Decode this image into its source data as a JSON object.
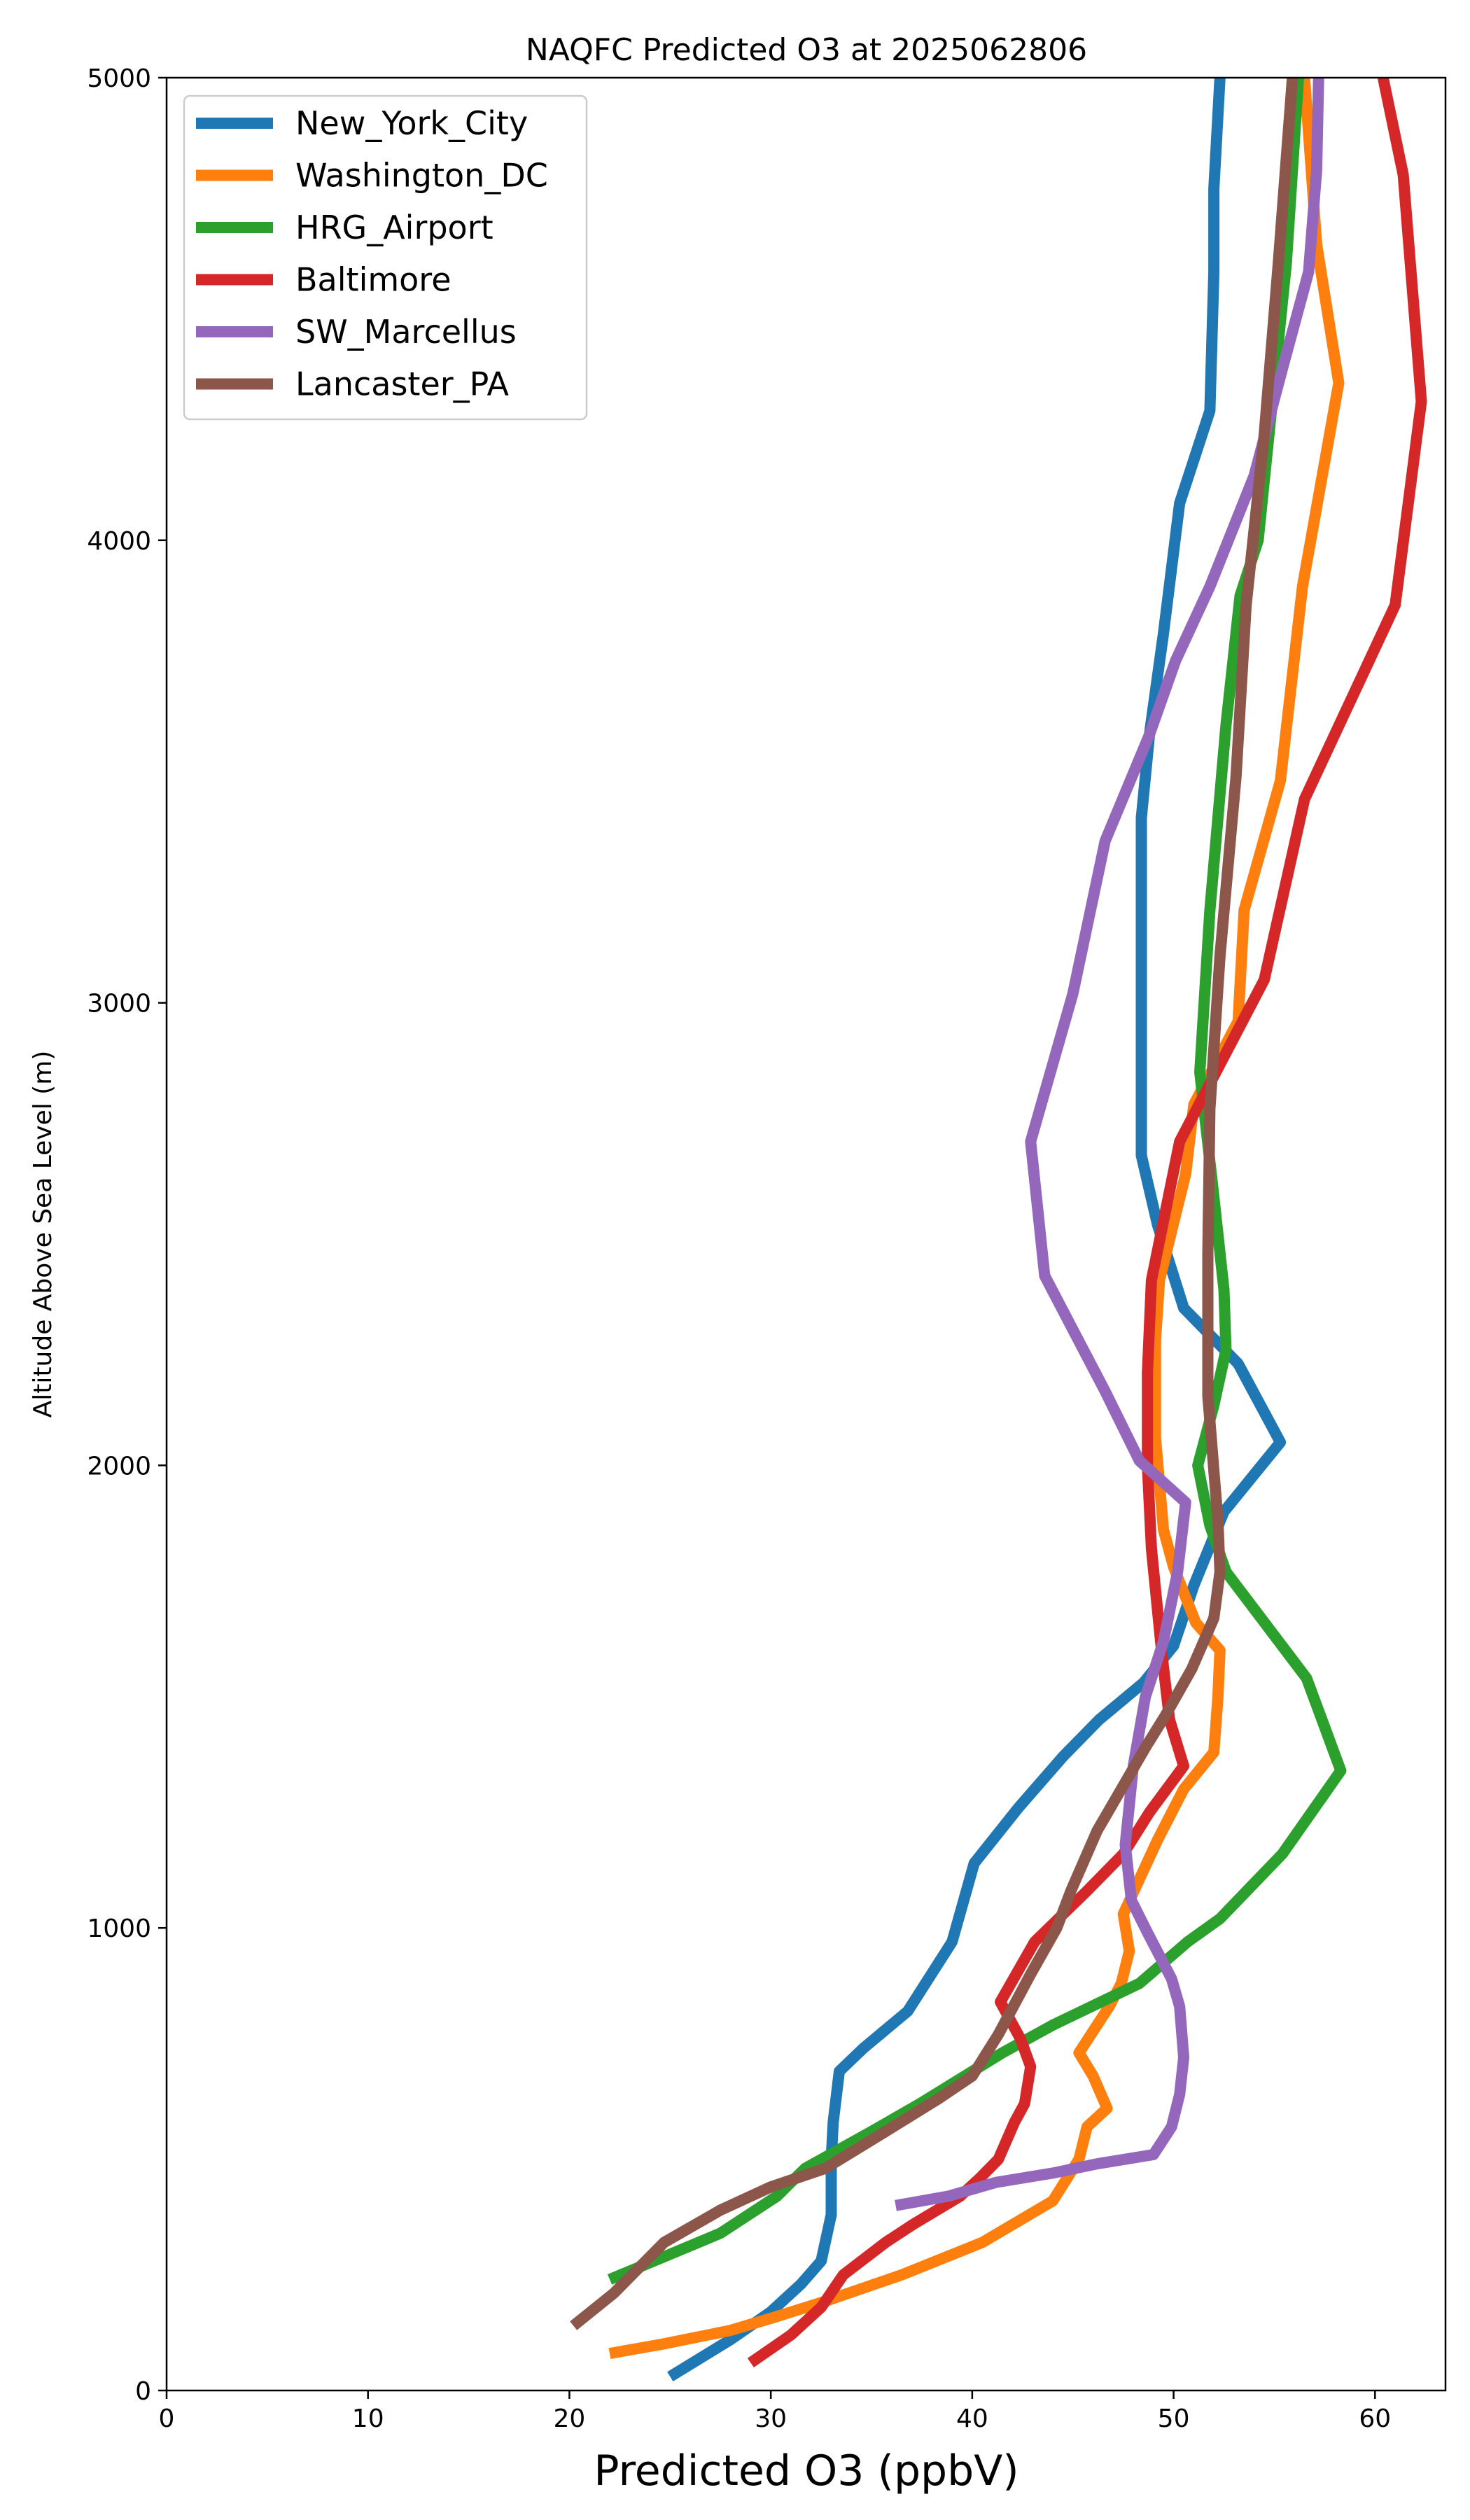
{
  "chart_data": {
    "type": "line",
    "title": "NAQFC Predicted O3 at 2025062806",
    "xlabel": "Predicted O3 (ppbV)",
    "ylabel": "Altitude Above Sea Level (m)",
    "xlim": [
      0,
      63.5
    ],
    "ylim": [
      0,
      5000
    ],
    "xticks": [
      0,
      10,
      20,
      30,
      40,
      50,
      60
    ],
    "yticks": [
      0,
      1000,
      2000,
      3000,
      4000,
      5000
    ],
    "legend": "top-left",
    "grid": false,
    "series": [
      {
        "name": "New_York_City",
        "color": "#1f77b4",
        "points": [
          [
            25,
            30
          ],
          [
            28,
            110
          ],
          [
            30,
            170
          ],
          [
            31.5,
            230
          ],
          [
            32.5,
            280
          ],
          [
            33,
            380
          ],
          [
            33,
            500
          ],
          [
            33.1,
            580
          ],
          [
            33.4,
            690
          ],
          [
            34.6,
            740
          ],
          [
            36.8,
            820
          ],
          [
            39,
            970
          ],
          [
            40.1,
            1140
          ],
          [
            42.3,
            1260
          ],
          [
            44.5,
            1370
          ],
          [
            46.3,
            1450
          ],
          [
            48.5,
            1530
          ],
          [
            50,
            1610
          ],
          [
            51,
            1740
          ],
          [
            52.5,
            1900
          ],
          [
            55.3,
            2050
          ],
          [
            53.2,
            2220
          ],
          [
            50.5,
            2340
          ],
          [
            49.2,
            2520
          ],
          [
            48.4,
            2670
          ],
          [
            48.4,
            3000
          ],
          [
            48.4,
            3400
          ],
          [
            48.8,
            3580
          ],
          [
            49.5,
            3800
          ],
          [
            50.3,
            4080
          ],
          [
            51.8,
            4280
          ],
          [
            52,
            4580
          ],
          [
            52,
            4760
          ],
          [
            52.3,
            5000
          ]
        ]
      },
      {
        "name": "Washington_DC",
        "color": "#ff7f0e",
        "points": [
          [
            22,
            80
          ],
          [
            24.6,
            100
          ],
          [
            28,
            130
          ],
          [
            30.3,
            160
          ],
          [
            32.5,
            190
          ],
          [
            36.5,
            250
          ],
          [
            40.5,
            320
          ],
          [
            44,
            410
          ],
          [
            45.3,
            500
          ],
          [
            45.7,
            570
          ],
          [
            46.7,
            610
          ],
          [
            46,
            680
          ],
          [
            45.3,
            730
          ],
          [
            46.8,
            830
          ],
          [
            47.4,
            880
          ],
          [
            47.8,
            950
          ],
          [
            47.5,
            1030
          ],
          [
            49.2,
            1190
          ],
          [
            50.5,
            1300
          ],
          [
            52,
            1380
          ],
          [
            52.2,
            1500
          ],
          [
            52.3,
            1600
          ],
          [
            51.1,
            1660
          ],
          [
            50,
            1780
          ],
          [
            49.5,
            1860
          ],
          [
            49.1,
            2060
          ],
          [
            49.1,
            2270
          ],
          [
            49.3,
            2400
          ],
          [
            50.6,
            2630
          ],
          [
            51,
            2780
          ],
          [
            53.2,
            2960
          ],
          [
            53.5,
            3200
          ],
          [
            55.3,
            3480
          ],
          [
            56.4,
            3900
          ],
          [
            58.2,
            4340
          ],
          [
            57.1,
            4640
          ],
          [
            56.5,
            5000
          ]
        ]
      },
      {
        "name": "HRG_Airport",
        "color": "#2ca02c",
        "points": [
          [
            22,
            240
          ],
          [
            27.5,
            340
          ],
          [
            30.3,
            420
          ],
          [
            31.7,
            480
          ],
          [
            35,
            560
          ],
          [
            37.4,
            620
          ],
          [
            41.5,
            730
          ],
          [
            44,
            790
          ],
          [
            48.3,
            880
          ],
          [
            50.7,
            970
          ],
          [
            52.3,
            1020
          ],
          [
            55.4,
            1160
          ],
          [
            58.3,
            1340
          ],
          [
            56.6,
            1540
          ],
          [
            52.6,
            1770
          ],
          [
            51.8,
            1870
          ],
          [
            51.2,
            2000
          ],
          [
            52,
            2130
          ],
          [
            52.6,
            2250
          ],
          [
            52.5,
            2380
          ],
          [
            52,
            2580
          ],
          [
            51.3,
            2850
          ],
          [
            51.8,
            3200
          ],
          [
            52.6,
            3600
          ],
          [
            53.3,
            3880
          ],
          [
            54.2,
            4000
          ],
          [
            54.9,
            4300
          ],
          [
            55.6,
            4600
          ],
          [
            56.2,
            5000
          ]
        ]
      },
      {
        "name": "Baltimore",
        "color": "#d62728",
        "points": [
          [
            29,
            60
          ],
          [
            31,
            120
          ],
          [
            32.5,
            180
          ],
          [
            33.6,
            250
          ],
          [
            35.7,
            320
          ],
          [
            37.1,
            360
          ],
          [
            39.4,
            420
          ],
          [
            40.4,
            460
          ],
          [
            41.3,
            500
          ],
          [
            42.1,
            580
          ],
          [
            42.6,
            620
          ],
          [
            42.9,
            700
          ],
          [
            42.4,
            760
          ],
          [
            41.4,
            840
          ],
          [
            43.1,
            970
          ],
          [
            45.7,
            1080
          ],
          [
            47.5,
            1160
          ],
          [
            48.8,
            1250
          ],
          [
            50.5,
            1350
          ],
          [
            49.8,
            1450
          ],
          [
            49.4,
            1600
          ],
          [
            48.9,
            1820
          ],
          [
            48.7,
            2000
          ],
          [
            48.7,
            2200
          ],
          [
            48.9,
            2400
          ],
          [
            50.3,
            2700
          ],
          [
            54.5,
            3050
          ],
          [
            56.5,
            3440
          ],
          [
            61,
            3860
          ],
          [
            62.3,
            4300
          ],
          [
            61.4,
            4790
          ],
          [
            60.4,
            5000
          ]
        ]
      },
      {
        "name": "SW_Marcellus",
        "color": "#9467bd",
        "points": [
          [
            36.2,
            400
          ],
          [
            38.8,
            420
          ],
          [
            41.2,
            450
          ],
          [
            44,
            470
          ],
          [
            46.2,
            490
          ],
          [
            49,
            510
          ],
          [
            49.9,
            570
          ],
          [
            50.3,
            640
          ],
          [
            50.5,
            720
          ],
          [
            50.3,
            830
          ],
          [
            49.9,
            890
          ],
          [
            48.7,
            990
          ],
          [
            47.9,
            1060
          ],
          [
            47.6,
            1180
          ],
          [
            48,
            1350
          ],
          [
            48.6,
            1500
          ],
          [
            49.5,
            1620
          ],
          [
            50.2,
            1770
          ],
          [
            50.6,
            1920
          ],
          [
            48.3,
            2010
          ],
          [
            46.6,
            2160
          ],
          [
            43.6,
            2410
          ],
          [
            42.9,
            2700
          ],
          [
            45,
            3020
          ],
          [
            46.6,
            3350
          ],
          [
            48.8,
            3580
          ],
          [
            50.1,
            3740
          ],
          [
            51.8,
            3900
          ],
          [
            54,
            4140
          ],
          [
            55.4,
            4370
          ],
          [
            56.7,
            4580
          ],
          [
            57.1,
            4800
          ],
          [
            57.2,
            5000
          ]
        ]
      },
      {
        "name": "Lancaster_PA",
        "color": "#8c564b",
        "points": [
          [
            20.2,
            140
          ],
          [
            22.2,
            210
          ],
          [
            24.7,
            320
          ],
          [
            27.5,
            390
          ],
          [
            30,
            440
          ],
          [
            32.7,
            480
          ],
          [
            35.7,
            560
          ],
          [
            38.3,
            630
          ],
          [
            40,
            680
          ],
          [
            41.3,
            770
          ],
          [
            42.9,
            900
          ],
          [
            44.2,
            1000
          ],
          [
            44.9,
            1080
          ],
          [
            46.2,
            1210
          ],
          [
            47.4,
            1300
          ],
          [
            48.6,
            1390
          ],
          [
            49.6,
            1460
          ],
          [
            50.9,
            1560
          ],
          [
            52,
            1670
          ],
          [
            52.3,
            1770
          ],
          [
            52.2,
            1880
          ],
          [
            51.7,
            2150
          ],
          [
            51.7,
            2460
          ],
          [
            51.8,
            2770
          ],
          [
            52.3,
            3100
          ],
          [
            53.1,
            3490
          ],
          [
            53.6,
            3860
          ],
          [
            54.5,
            4230
          ],
          [
            55.2,
            4600
          ],
          [
            55.9,
            5000
          ]
        ]
      }
    ]
  }
}
